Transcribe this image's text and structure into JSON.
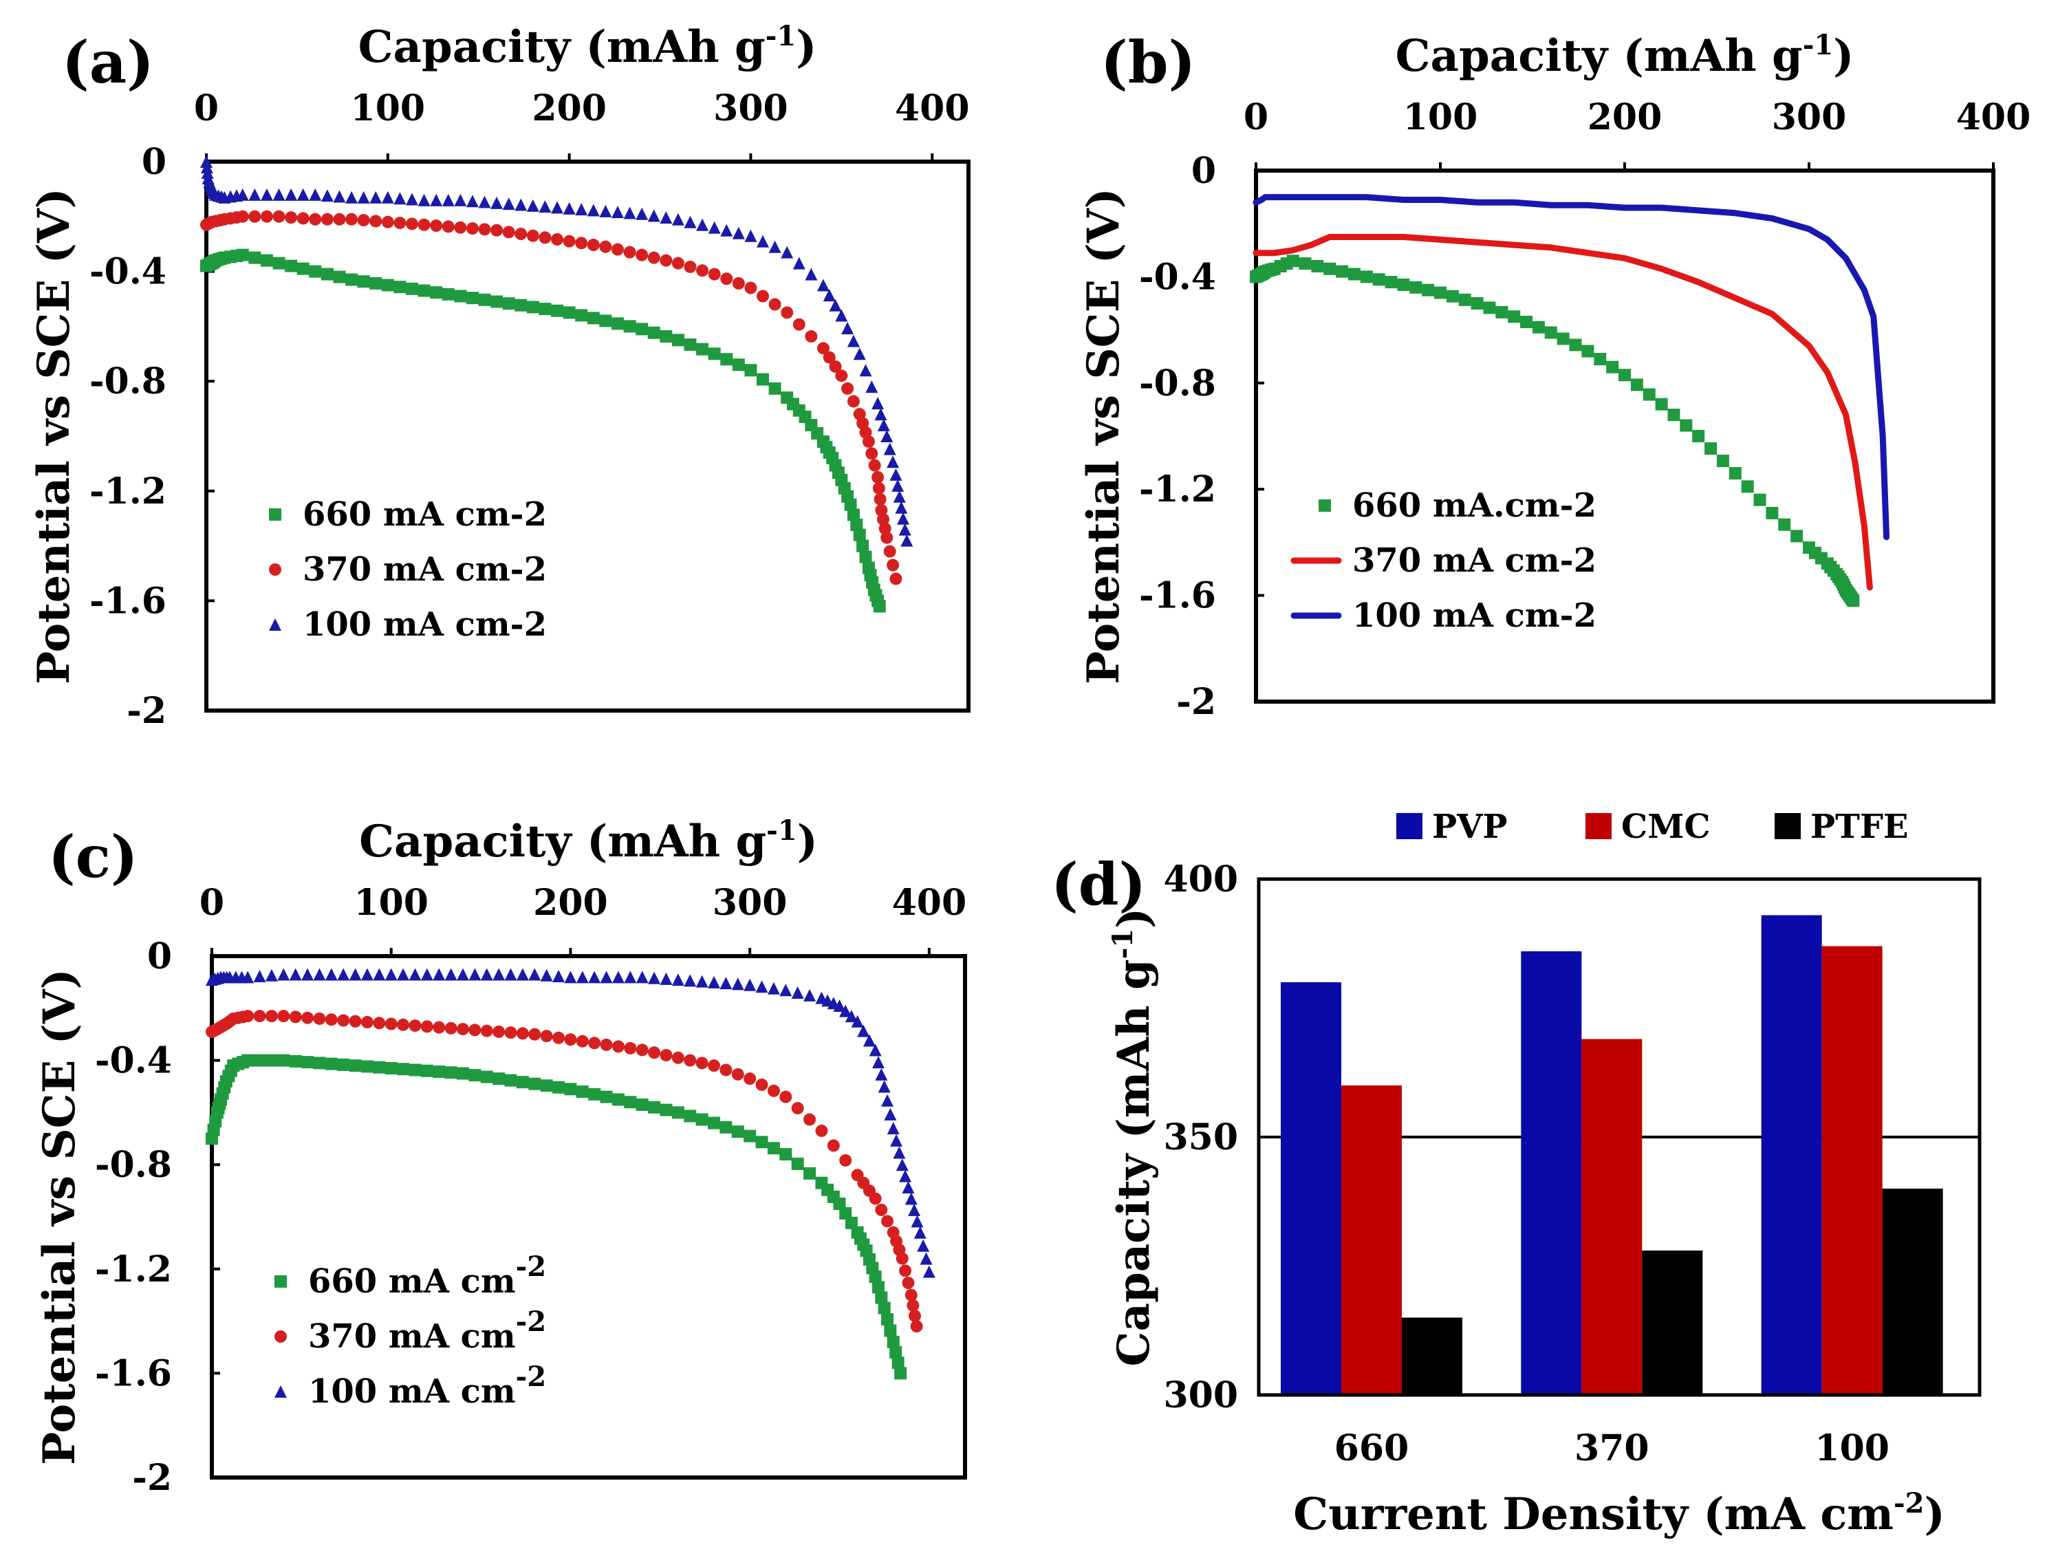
{
  "chart_data": [
    {
      "panel": "(a)",
      "type": "scatter",
      "xlabel": "Capacity (mAh g",
      "xlabel_sup": "-1",
      "xlabel_end": ")",
      "ylabel": "Potential vs SCE (V)",
      "xlim": [
        0,
        420
      ],
      "ylim": [
        -2,
        0
      ],
      "xticks": [
        "0",
        "100",
        "200",
        "300",
        "400"
      ],
      "yticks": [
        "0",
        "-0.4",
        "-0.8",
        "-1.2",
        "-1.6",
        "-2"
      ],
      "legend_location": "lower-left",
      "series": [
        {
          "name": "660 mA cm-2",
          "color": "#1f9a3e",
          "marker": "square",
          "x": [
            0,
            3,
            5,
            10,
            20,
            40,
            60,
            80,
            100,
            120,
            140,
            160,
            180,
            200,
            220,
            240,
            260,
            280,
            300,
            320,
            330,
            340,
            345,
            350,
            355,
            360,
            365,
            368,
            371
          ],
          "y": [
            -0.38,
            -0.37,
            -0.36,
            -0.35,
            -0.34,
            -0.37,
            -0.4,
            -0.43,
            -0.45,
            -0.47,
            -0.49,
            -0.51,
            -0.53,
            -0.55,
            -0.58,
            -0.61,
            -0.65,
            -0.7,
            -0.76,
            -0.86,
            -0.93,
            -1.02,
            -1.08,
            -1.16,
            -1.25,
            -1.36,
            -1.48,
            -1.56,
            -1.62
          ]
        },
        {
          "name": "370 mA cm-2",
          "color": "#d62020",
          "marker": "circle",
          "x": [
            0,
            3,
            10,
            20,
            40,
            60,
            80,
            100,
            120,
            140,
            160,
            180,
            200,
            220,
            240,
            260,
            280,
            300,
            320,
            340,
            350,
            360,
            365,
            370,
            372,
            375,
            380
          ],
          "y": [
            -0.23,
            -0.22,
            -0.21,
            -0.2,
            -0.2,
            -0.21,
            -0.21,
            -0.22,
            -0.23,
            -0.24,
            -0.25,
            -0.27,
            -0.29,
            -0.31,
            -0.34,
            -0.37,
            -0.41,
            -0.46,
            -0.55,
            -0.68,
            -0.78,
            -0.92,
            -1.02,
            -1.15,
            -1.27,
            -1.37,
            -1.52
          ]
        },
        {
          "name": "100 mA cm-2",
          "color": "#1a1aa8",
          "marker": "triangle",
          "x": [
            0,
            1,
            3,
            5,
            10,
            20,
            40,
            60,
            80,
            100,
            120,
            140,
            160,
            180,
            200,
            220,
            240,
            260,
            280,
            300,
            320,
            340,
            350,
            360,
            370,
            375,
            380,
            383,
            386
          ],
          "y": [
            0.0,
            -0.06,
            -0.1,
            -0.12,
            -0.13,
            -0.12,
            -0.12,
            -0.12,
            -0.13,
            -0.13,
            -0.14,
            -0.14,
            -0.15,
            -0.16,
            -0.17,
            -0.18,
            -0.19,
            -0.21,
            -0.24,
            -0.27,
            -0.33,
            -0.45,
            -0.56,
            -0.7,
            -0.88,
            -1.0,
            -1.14,
            -1.26,
            -1.38
          ]
        }
      ]
    },
    {
      "panel": "(b)",
      "type": "line",
      "xlabel": "Capacity (mAh g",
      "xlabel_sup": "-1",
      "xlabel_end": ")",
      "ylabel": "Potential vs SCE (V)",
      "xlim": [
        0,
        400
      ],
      "ylim": [
        -2,
        0
      ],
      "xticks": [
        "0",
        "100",
        "200",
        "300",
        "400"
      ],
      "yticks": [
        "0",
        "-0.4",
        "-0.8",
        "-1.2",
        "-1.6",
        "-2"
      ],
      "legend_location": "lower-left",
      "series": [
        {
          "name": "660 mA.cm-2",
          "color": "#1f9a3e",
          "marker": "square",
          "x": [
            0,
            3,
            5,
            10,
            20,
            40,
            60,
            80,
            100,
            120,
            140,
            160,
            180,
            200,
            220,
            240,
            260,
            280,
            300,
            310,
            315,
            318,
            320,
            322,
            324
          ],
          "y": [
            -0.4,
            -0.39,
            -0.38,
            -0.37,
            -0.34,
            -0.37,
            -0.4,
            -0.43,
            -0.46,
            -0.5,
            -0.55,
            -0.61,
            -0.68,
            -0.77,
            -0.88,
            -1.0,
            -1.14,
            -1.29,
            -1.42,
            -1.48,
            -1.52,
            -1.55,
            -1.58,
            -1.6,
            -1.62
          ]
        },
        {
          "name": "370 mA cm-2",
          "color": "#e01818",
          "marker": "line",
          "x": [
            0,
            10,
            20,
            30,
            40,
            60,
            80,
            100,
            120,
            140,
            160,
            180,
            200,
            220,
            240,
            260,
            280,
            300,
            310,
            320,
            325,
            330,
            333
          ],
          "y": [
            -0.31,
            -0.31,
            -0.3,
            -0.28,
            -0.25,
            -0.25,
            -0.25,
            -0.26,
            -0.27,
            -0.28,
            -0.29,
            -0.31,
            -0.33,
            -0.37,
            -0.42,
            -0.48,
            -0.54,
            -0.66,
            -0.76,
            -0.92,
            -1.1,
            -1.34,
            -1.57
          ]
        },
        {
          "name": "100 mA cm-2",
          "color": "#1818b0",
          "marker": "line",
          "x": [
            0,
            3,
            5,
            10,
            20,
            40,
            60,
            80,
            100,
            120,
            140,
            160,
            180,
            200,
            220,
            240,
            260,
            280,
            300,
            310,
            320,
            330,
            335,
            340,
            342
          ],
          "y": [
            -0.12,
            -0.11,
            -0.1,
            -0.1,
            -0.1,
            -0.1,
            -0.1,
            -0.11,
            -0.11,
            -0.12,
            -0.12,
            -0.13,
            -0.13,
            -0.14,
            -0.14,
            -0.15,
            -0.16,
            -0.18,
            -0.22,
            -0.26,
            -0.33,
            -0.45,
            -0.55,
            -1.0,
            -1.38
          ]
        }
      ]
    },
    {
      "panel": "(c)",
      "type": "scatter",
      "xlabel": "Capacity (mAh g",
      "xlabel_sup": "-1",
      "xlabel_end": ")",
      "ylabel": "Potential vs SCE (V)",
      "xlim": [
        0,
        420
      ],
      "ylim": [
        -2,
        0
      ],
      "xticks": [
        "0",
        "100",
        "200",
        "300",
        "400"
      ],
      "yticks": [
        "0",
        "-0.4",
        "-0.8",
        "-1.2",
        "-1.6",
        "-2"
      ],
      "legend_location": "lower-left",
      "series": [
        {
          "name": "660 mA cm",
          "name_sup": "-2",
          "color": "#1f9a3e",
          "marker": "square",
          "x": [
            0,
            3,
            5,
            8,
            12,
            20,
            40,
            60,
            80,
            100,
            120,
            140,
            160,
            180,
            200,
            220,
            240,
            260,
            280,
            300,
            320,
            340,
            350,
            360,
            365,
            370,
            375,
            380,
            384
          ],
          "y": [
            -0.7,
            -0.6,
            -0.55,
            -0.48,
            -0.42,
            -0.4,
            -0.4,
            -0.41,
            -0.42,
            -0.43,
            -0.44,
            -0.45,
            -0.47,
            -0.49,
            -0.51,
            -0.54,
            -0.57,
            -0.6,
            -0.64,
            -0.69,
            -0.76,
            -0.87,
            -0.95,
            -1.06,
            -1.13,
            -1.23,
            -1.35,
            -1.48,
            -1.6
          ]
        },
        {
          "name": "370 mA cm",
          "name_sup": "-2",
          "color": "#d62020",
          "marker": "circle",
          "x": [
            0,
            3,
            8,
            12,
            20,
            40,
            60,
            80,
            100,
            120,
            140,
            160,
            180,
            200,
            220,
            240,
            260,
            280,
            300,
            320,
            340,
            360,
            370,
            380,
            385,
            390,
            393
          ],
          "y": [
            -0.29,
            -0.28,
            -0.26,
            -0.24,
            -0.23,
            -0.23,
            -0.24,
            -0.25,
            -0.26,
            -0.27,
            -0.28,
            -0.29,
            -0.3,
            -0.32,
            -0.34,
            -0.36,
            -0.39,
            -0.42,
            -0.47,
            -0.54,
            -0.67,
            -0.84,
            -0.93,
            -1.06,
            -1.16,
            -1.3,
            -1.42
          ]
        },
        {
          "name": "100 mA cm",
          "name_sup": "-2",
          "color": "#1a1aa8",
          "marker": "triangle",
          "x": [
            0,
            5,
            10,
            20,
            40,
            60,
            80,
            100,
            120,
            140,
            160,
            180,
            200,
            220,
            240,
            260,
            280,
            300,
            320,
            340,
            350,
            360,
            370,
            375,
            380,
            385,
            390,
            395,
            400
          ],
          "y": [
            -0.09,
            -0.08,
            -0.08,
            -0.08,
            -0.07,
            -0.07,
            -0.07,
            -0.07,
            -0.07,
            -0.07,
            -0.07,
            -0.07,
            -0.08,
            -0.08,
            -0.08,
            -0.09,
            -0.1,
            -0.11,
            -0.13,
            -0.16,
            -0.19,
            -0.25,
            -0.36,
            -0.5,
            -0.66,
            -0.8,
            -0.93,
            -1.06,
            -1.21
          ]
        }
      ]
    },
    {
      "panel": "(d)",
      "type": "bar",
      "xlabel": "Current Density (mA cm",
      "xlabel_sup": "-2",
      "xlabel_end": ")",
      "ylabel": "Capacity (mAh g",
      "ylabel_sup": "-1",
      "ylabel_end": ")",
      "ylim": [
        300,
        400
      ],
      "yticks": [
        "300",
        "350",
        "400"
      ],
      "categories": [
        "660",
        "370",
        "100"
      ],
      "legend_location": "top",
      "gridline": 350,
      "series": [
        {
          "name": "PVP",
          "color": "#0a0aa8",
          "values": [
            380,
            386,
            393
          ]
        },
        {
          "name": "CMC",
          "color": "#c00000",
          "values": [
            360,
            369,
            387
          ]
        },
        {
          "name": "PTFE",
          "color": "#000000",
          "values": [
            315,
            328,
            340
          ]
        }
      ]
    }
  ]
}
